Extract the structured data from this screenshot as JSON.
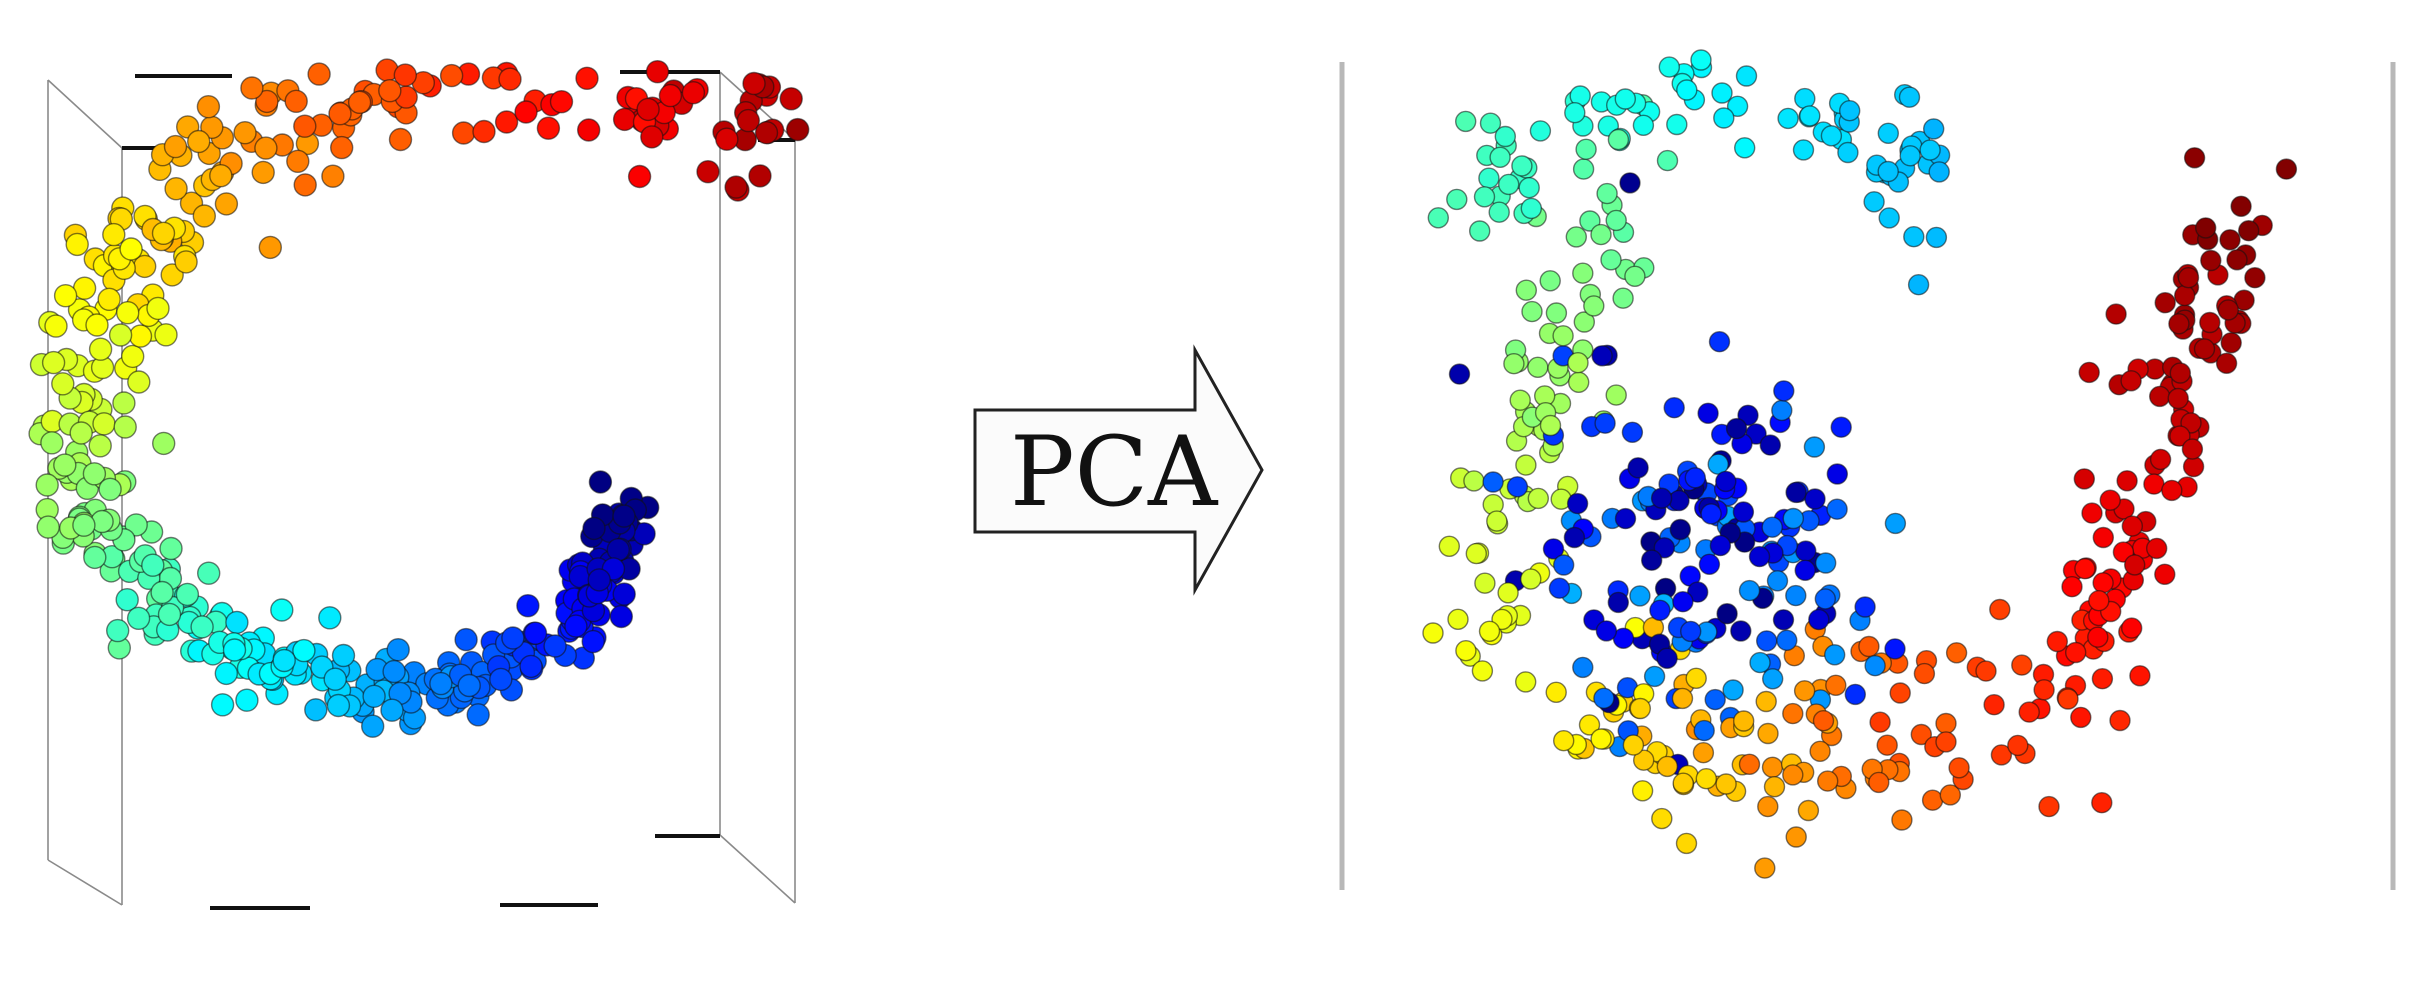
{
  "arrow": {
    "label": "PCA"
  },
  "colormap": "jet",
  "panels": [
    {
      "name": "swiss-roll-3d",
      "point_count": 520
    },
    {
      "name": "pca-projection-2d",
      "point_count": 560
    }
  ]
}
